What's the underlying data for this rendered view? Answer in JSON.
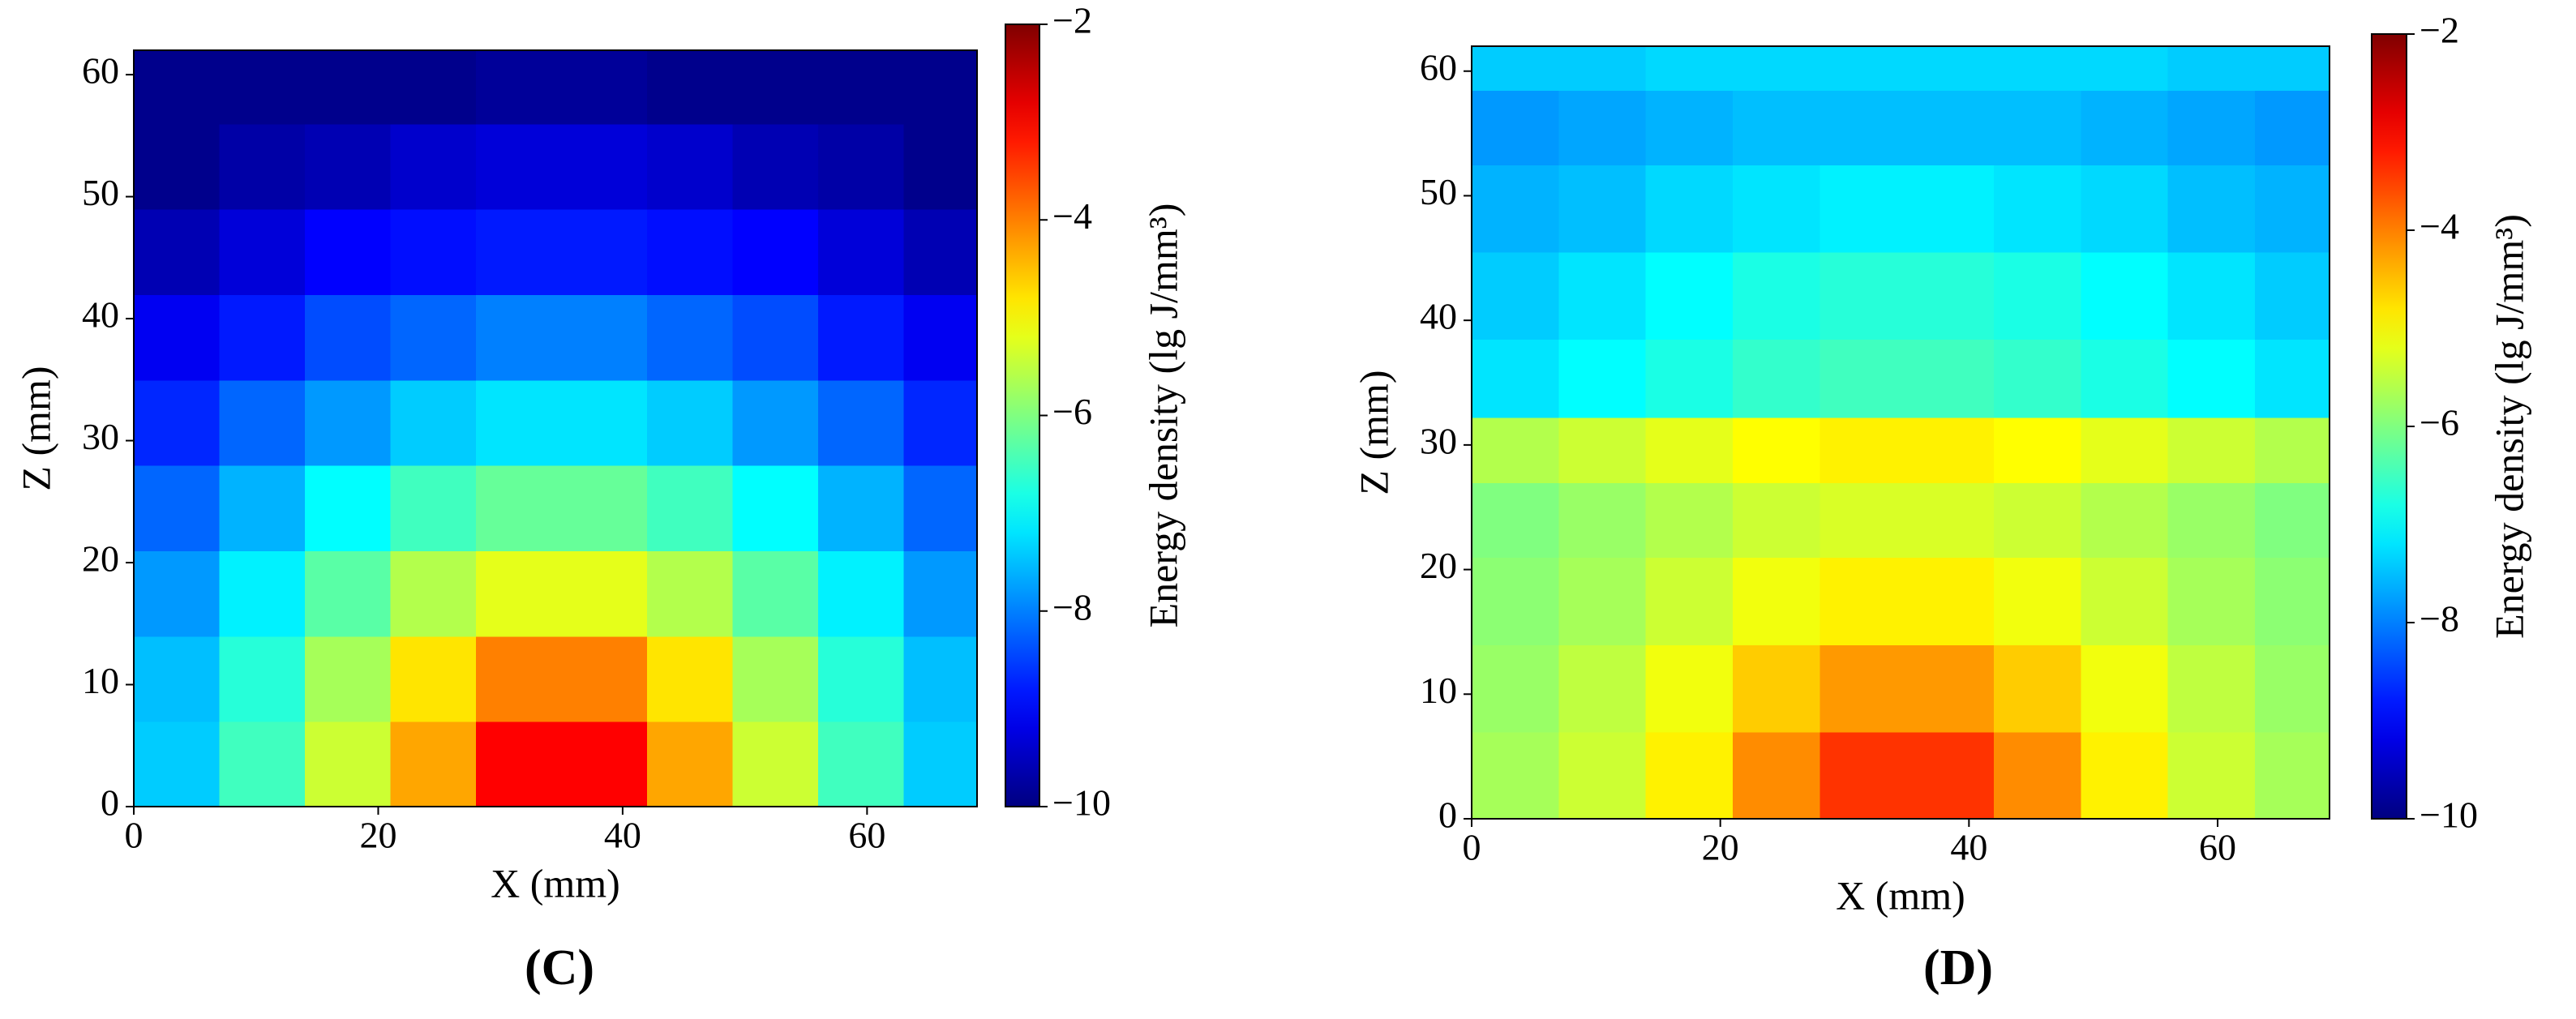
{
  "chart_data": [
    {
      "type": "heatmap",
      "label": "(C)",
      "xlabel": "X (mm)",
      "ylabel": "Z (mm)",
      "colormap": "jet",
      "clabel": "Energy density (lg J/mm³)",
      "clim": [
        -10,
        -2
      ],
      "cticks": [
        {
          "value": -10,
          "label": "−10"
        },
        {
          "value": -8,
          "label": "−8"
        },
        {
          "value": -6,
          "label": "−6"
        },
        {
          "value": -4,
          "label": "−4"
        },
        {
          "value": -2,
          "label": "−2"
        }
      ],
      "xlim": [
        0,
        69
      ],
      "ylim": [
        0,
        62
      ],
      "xticks": [
        0,
        20,
        40,
        60
      ],
      "yticks": [
        0,
        10,
        20,
        30,
        40,
        50,
        60
      ],
      "x": [
        3.5,
        10.5,
        17.5,
        24.5,
        31.5,
        38.5,
        45.5,
        52.5,
        59.5,
        66.5
      ],
      "y": [
        3.5,
        10.5,
        17.5,
        24.5,
        31.5,
        38.5,
        45.5,
        52.5,
        59.5
      ],
      "values": [
        [
          -7.4,
          -6.5,
          -5.4,
          -4.3,
          -3.0,
          -3.0,
          -4.3,
          -5.4,
          -6.5,
          -7.4
        ],
        [
          -7.5,
          -6.7,
          -5.7,
          -4.8,
          -4.0,
          -4.0,
          -4.8,
          -5.7,
          -6.7,
          -7.5
        ],
        [
          -7.8,
          -7.1,
          -6.3,
          -5.6,
          -5.2,
          -5.2,
          -5.6,
          -6.3,
          -7.1,
          -7.8
        ],
        [
          -8.2,
          -7.6,
          -7.0,
          -6.5,
          -6.2,
          -6.2,
          -6.5,
          -7.0,
          -7.6,
          -8.2
        ],
        [
          -8.7,
          -8.2,
          -7.8,
          -7.4,
          -7.2,
          -7.2,
          -7.4,
          -7.8,
          -8.2,
          -8.7
        ],
        [
          -9.1,
          -8.8,
          -8.4,
          -8.2,
          -8.0,
          -8.0,
          -8.2,
          -8.4,
          -8.8,
          -9.1
        ],
        [
          -9.6,
          -9.3,
          -9.0,
          -8.9,
          -8.8,
          -8.8,
          -8.9,
          -9.0,
          -9.3,
          -9.6
        ],
        [
          -9.9,
          -9.7,
          -9.6,
          -9.4,
          -9.3,
          -9.3,
          -9.4,
          -9.6,
          -9.7,
          -9.9
        ],
        [
          -9.9,
          -9.9,
          -9.9,
          -9.9,
          -9.8,
          -9.8,
          -9.9,
          -9.9,
          -9.9,
          -9.9
        ]
      ]
    },
    {
      "type": "heatmap",
      "label": "(D)",
      "xlabel": "X (mm)",
      "ylabel": "Z (mm)",
      "colormap": "jet",
      "clabel": "Energy density (lg J/mm³)",
      "clim": [
        -10,
        -2
      ],
      "cticks": [
        {
          "value": -10,
          "label": "−10"
        },
        {
          "value": -8,
          "label": "−8"
        },
        {
          "value": -6,
          "label": "−6"
        },
        {
          "value": -4,
          "label": "−4"
        },
        {
          "value": -2,
          "label": "−2"
        }
      ],
      "xlim": [
        0,
        69
      ],
      "ylim": [
        0,
        62
      ],
      "xticks": [
        0,
        20,
        40,
        60
      ],
      "yticks": [
        0,
        10,
        20,
        30,
        40,
        50,
        60
      ],
      "x": [
        3.5,
        10.5,
        17.5,
        24.5,
        31.5,
        38.5,
        45.5,
        52.5,
        59.5,
        66.5
      ],
      "y": [
        3.5,
        10.5,
        17.5,
        24.5,
        29.5,
        35,
        42,
        49,
        56,
        61
      ],
      "values": [
        [
          -5.7,
          -5.4,
          -4.9,
          -4.1,
          -3.4,
          -3.4,
          -4.1,
          -4.9,
          -5.4,
          -5.7
        ],
        [
          -5.8,
          -5.5,
          -5.1,
          -4.6,
          -4.2,
          -4.2,
          -4.6,
          -5.1,
          -5.5,
          -5.8
        ],
        [
          -5.9,
          -5.7,
          -5.4,
          -5.1,
          -4.9,
          -4.9,
          -5.1,
          -5.4,
          -5.7,
          -5.9
        ],
        [
          -6.0,
          -5.8,
          -5.6,
          -5.4,
          -5.3,
          -5.3,
          -5.4,
          -5.6,
          -5.8,
          -6.0
        ],
        [
          -5.6,
          -5.4,
          -5.2,
          -5.0,
          -4.9,
          -4.9,
          -5.0,
          -5.2,
          -5.4,
          -5.6
        ],
        [
          -7.2,
          -7.0,
          -6.8,
          -6.6,
          -6.5,
          -6.5,
          -6.6,
          -6.8,
          -7.0,
          -7.2
        ],
        [
          -7.4,
          -7.2,
          -7.0,
          -6.8,
          -6.7,
          -6.7,
          -6.8,
          -7.0,
          -7.2,
          -7.4
        ],
        [
          -7.6,
          -7.5,
          -7.3,
          -7.2,
          -7.1,
          -7.1,
          -7.2,
          -7.3,
          -7.5,
          -7.6
        ],
        [
          -7.8,
          -7.7,
          -7.6,
          -7.5,
          -7.5,
          -7.5,
          -7.5,
          -7.6,
          -7.7,
          -7.8
        ],
        [
          -7.4,
          -7.4,
          -7.3,
          -7.3,
          -7.3,
          -7.3,
          -7.3,
          -7.3,
          -7.4,
          -7.4
        ]
      ]
    }
  ]
}
